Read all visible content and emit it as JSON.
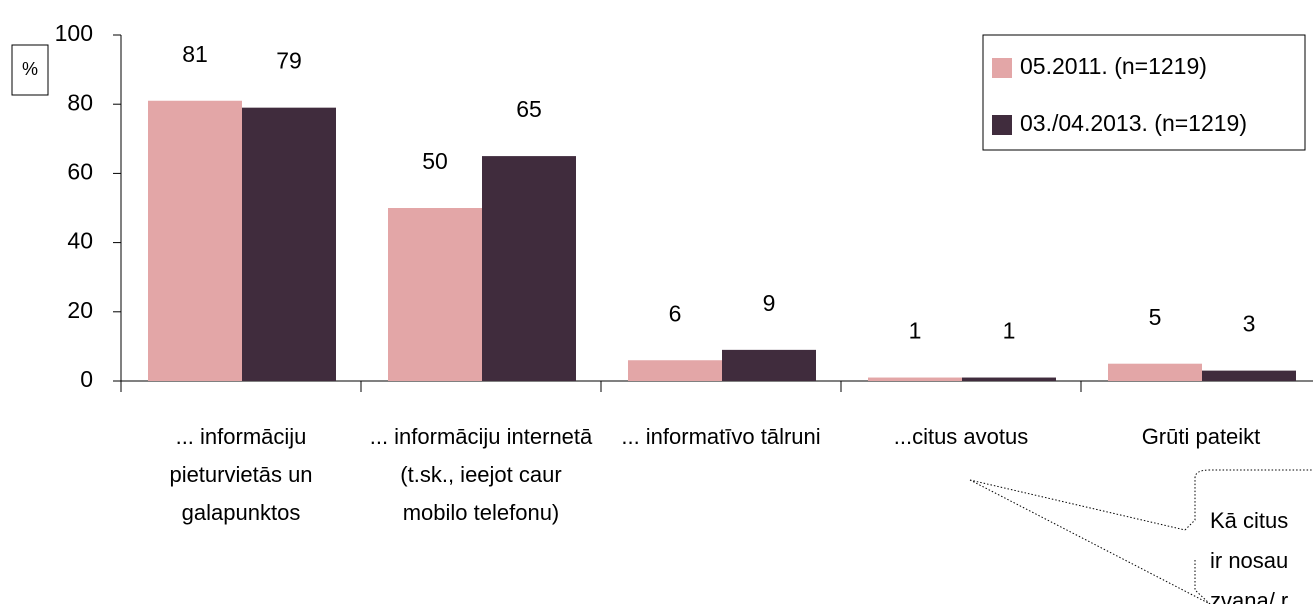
{
  "chart_data": {
    "type": "bar",
    "y_label": "%",
    "categories": [
      "... informāciju pieturvietās un galapunktos",
      "... informāciju internetā (t.sk., ieejot caur mobilo telefonu)",
      "... informatīvo tālruni",
      "...citus avotus",
      "Grūti pateikt"
    ],
    "series": [
      {
        "name": "05.2011. (n=1219)",
        "color": "#e3a6a7",
        "values": [
          81,
          50,
          6,
          1,
          5
        ]
      },
      {
        "name": "03./04.2013. (n=1219)",
        "color": "#402c3d",
        "values": [
          79,
          65,
          9,
          1,
          3
        ]
      }
    ],
    "ylim": [
      0,
      100
    ],
    "yticks": [
      0,
      20,
      40,
      60,
      80,
      100
    ],
    "legend": "top-right",
    "annotation": [
      "Kā citus",
      "ir nosau",
      "zvana/ r"
    ]
  }
}
